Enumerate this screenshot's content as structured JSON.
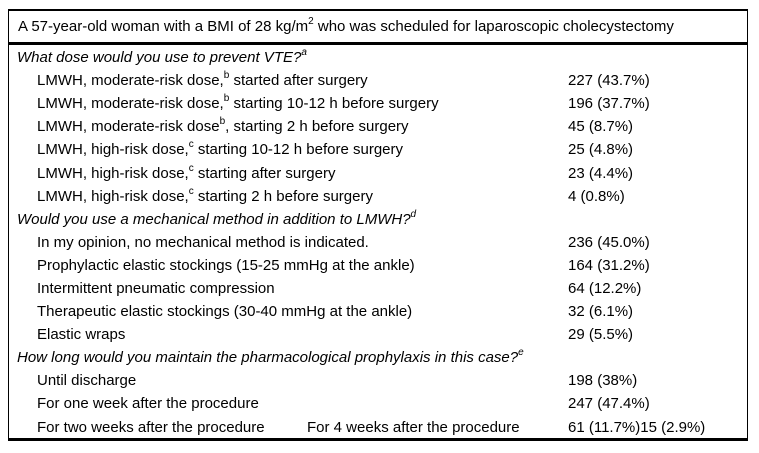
{
  "colors": {
    "text": "#000000",
    "background": "#ffffff",
    "border": "#000000"
  },
  "header": {
    "case_pre": "A 57-year-old woman with a BMI of 28 kg/m",
    "case_sup": "2",
    "case_post": " who was scheduled for laparoscopic cholecystectomy"
  },
  "sections": [
    {
      "question": "What dose would you use to prevent VTE?",
      "footnote": "a",
      "rows": [
        {
          "pre": "LMWH, moderate-risk dose,",
          "sup": "b",
          "post": " started after surgery",
          "value": "227 (43.7%)"
        },
        {
          "pre": "LMWH, moderate-risk dose,",
          "sup": "b",
          "post": " starting 10-12 h before surgery",
          "value": "196 (37.7%)"
        },
        {
          "pre": "LMWH, moderate-risk dose",
          "sup": "b",
          "post": ", starting 2 h before surgery",
          "value": "45 (8.7%)"
        },
        {
          "pre": "LMWH, high-risk dose,",
          "sup": "c",
          "post": " starting 10-12 h before surgery",
          "value": "25 (4.8%)"
        },
        {
          "pre": "LMWH, high-risk dose,",
          "sup": "c",
          "post": " starting after surgery",
          "value": "23 (4.4%)"
        },
        {
          "pre": "LMWH, high-risk dose,",
          "sup": "c",
          "post": " starting 2 h before surgery",
          "value": "4 (0.8%)"
        }
      ]
    },
    {
      "question": "Would you use a mechanical method in addition to LMWH?",
      "footnote": "d",
      "rows": [
        {
          "pre": "In my opinion, no mechanical method is indicated.",
          "value": "236 (45.0%)"
        },
        {
          "pre": "Prophylactic elastic stockings (15-25 mmHg at the ankle)",
          "value": "164 (31.2%)"
        },
        {
          "pre": "Intermittent pneumatic compression",
          "value": "64 (12.2%)"
        },
        {
          "pre": "Therapeutic elastic stockings (30-40 mmHg at the ankle)",
          "value": "32 (6.1%)"
        },
        {
          "pre": "Elastic wraps",
          "value": "29 (5.5%)"
        }
      ]
    },
    {
      "question": "How long would you maintain the pharmacological prophylaxis in this case?",
      "footnote": "e",
      "rows": [
        {
          "pre": "Until discharge",
          "value": "198 (38%)"
        },
        {
          "pre": "For one week after the procedure",
          "value": "247 (47.4%)"
        },
        {
          "pre": "For two weeks after the procedure",
          "label2": "For 4 weeks after the procedure",
          "value": "61 (11.7%)",
          "value2": "15 (2.9%)"
        }
      ]
    }
  ]
}
